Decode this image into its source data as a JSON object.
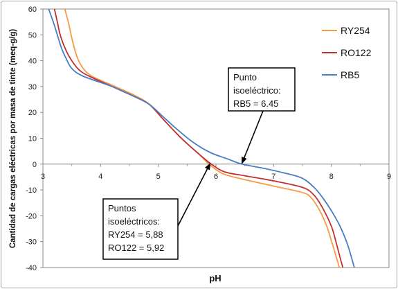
{
  "chart_data": {
    "type": "line",
    "title": "",
    "xlabel": "pH",
    "ylabel": "Cantidad de cargas eléctricas por masa de tinte (meq-g/g)",
    "xlim": [
      3,
      9
    ],
    "ylim": [
      -40,
      60
    ],
    "xticks": [
      "3",
      "4",
      "5",
      "6",
      "7",
      "8",
      "9"
    ],
    "yticks": [
      "-40",
      "-30",
      "-20",
      "-10",
      "0",
      "10",
      "20",
      "30",
      "40",
      "50",
      "60"
    ],
    "grid": false,
    "legend_position": "top-right",
    "series": [
      {
        "name": "RY254",
        "color": "#f59a45",
        "points": [
          [
            3.38,
            60
          ],
          [
            3.45,
            54
          ],
          [
            3.52,
            47
          ],
          [
            3.6,
            41
          ],
          [
            3.7,
            37
          ],
          [
            3.85,
            34
          ],
          [
            4.2,
            30.5
          ],
          [
            4.6,
            26.5
          ],
          [
            4.85,
            23
          ],
          [
            5.1,
            17
          ],
          [
            5.4,
            10
          ],
          [
            5.7,
            4
          ],
          [
            5.88,
            0
          ],
          [
            6.1,
            -3.5
          ],
          [
            6.4,
            -5.5
          ],
          [
            7.0,
            -8.5
          ],
          [
            7.5,
            -11
          ],
          [
            7.65,
            -13
          ],
          [
            7.8,
            -18
          ],
          [
            7.92,
            -24
          ],
          [
            8.02,
            -31
          ],
          [
            8.1,
            -37
          ],
          [
            8.14,
            -40
          ]
        ]
      },
      {
        "name": "RO122",
        "color": "#c03030",
        "points": [
          [
            3.2,
            60
          ],
          [
            3.25,
            55
          ],
          [
            3.3,
            50
          ],
          [
            3.38,
            45
          ],
          [
            3.5,
            40
          ],
          [
            3.65,
            36
          ],
          [
            3.85,
            33.5
          ],
          [
            4.2,
            30
          ],
          [
            4.6,
            26
          ],
          [
            4.85,
            23
          ],
          [
            5.1,
            17
          ],
          [
            5.4,
            10
          ],
          [
            5.7,
            4
          ],
          [
            5.92,
            0
          ],
          [
            6.15,
            -3
          ],
          [
            6.5,
            -4.5
          ],
          [
            7.0,
            -6.5
          ],
          [
            7.5,
            -9
          ],
          [
            7.7,
            -12
          ],
          [
            7.85,
            -17
          ],
          [
            8.0,
            -24
          ],
          [
            8.08,
            -30
          ],
          [
            8.15,
            -36
          ],
          [
            8.2,
            -40
          ]
        ]
      },
      {
        "name": "RB5",
        "color": "#4a7cc4",
        "points": [
          [
            3.1,
            60
          ],
          [
            3.18,
            55
          ],
          [
            3.25,
            50
          ],
          [
            3.32,
            45
          ],
          [
            3.4,
            41
          ],
          [
            3.5,
            37
          ],
          [
            3.7,
            34
          ],
          [
            4.2,
            30
          ],
          [
            4.6,
            26
          ],
          [
            4.85,
            23
          ],
          [
            5.1,
            18
          ],
          [
            5.35,
            13
          ],
          [
            5.6,
            8.5
          ],
          [
            5.9,
            4.5
          ],
          [
            6.2,
            2
          ],
          [
            6.45,
            0
          ],
          [
            6.8,
            -1.5
          ],
          [
            7.2,
            -3.5
          ],
          [
            7.5,
            -5.5
          ],
          [
            7.7,
            -9
          ],
          [
            7.85,
            -13
          ],
          [
            8.0,
            -18
          ],
          [
            8.15,
            -24
          ],
          [
            8.28,
            -31
          ],
          [
            8.36,
            -37
          ],
          [
            8.4,
            -40
          ]
        ]
      }
    ],
    "annotations": [
      {
        "id": "rb5",
        "lines": [
          "Punto",
          "isoeléctrico:",
          "RB5 = 6.45"
        ],
        "arrow_to": [
          6.45,
          0
        ]
      },
      {
        "id": "ry-ro",
        "lines": [
          "Puntos",
          "isoeléctricos:",
          "RY254 = 5,88",
          "RO122 = 5,92"
        ],
        "arrow_to": [
          5.9,
          0
        ]
      }
    ]
  }
}
